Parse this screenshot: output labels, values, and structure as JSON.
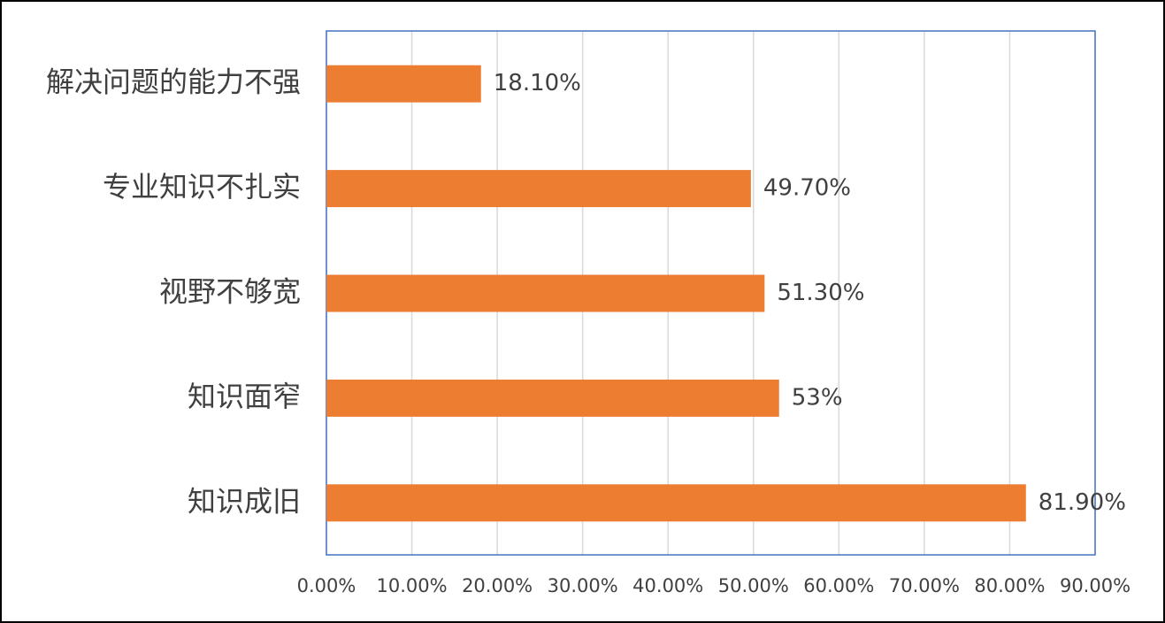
{
  "chart_data": {
    "type": "hbar",
    "categories": [
      "解决问题的能力不强",
      "专业知识不扎实",
      "视野不够宽",
      "知识面窄",
      "知识成旧"
    ],
    "values": [
      18.1,
      49.7,
      51.3,
      53,
      81.9
    ],
    "value_labels": [
      "18.10%",
      "49.70%",
      "51.30%",
      "53%",
      "81.90%"
    ],
    "color": "#ed7d31",
    "xlim": [
      0,
      90
    ],
    "xticks": [
      {
        "value": 0,
        "label": "0.00%"
      },
      {
        "value": 10,
        "label": "10.00%"
      },
      {
        "value": 20,
        "label": "20.00%"
      },
      {
        "value": 30,
        "label": "30.00%"
      },
      {
        "value": 40,
        "label": "40.00%"
      },
      {
        "value": 50,
        "label": "50.00%"
      },
      {
        "value": 60,
        "label": "60.00%"
      },
      {
        "value": 70,
        "label": "70.00%"
      },
      {
        "value": 80,
        "label": "80.00%"
      },
      {
        "value": 90,
        "label": "90.00%"
      }
    ],
    "grid": true
  }
}
